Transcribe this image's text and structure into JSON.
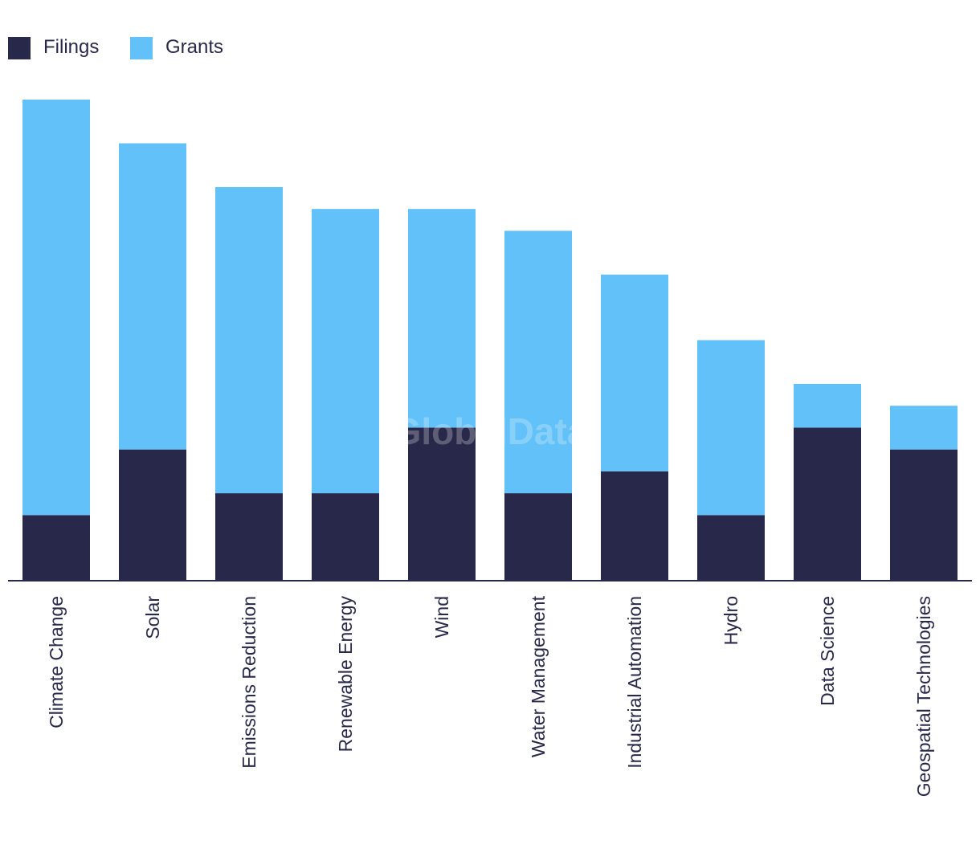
{
  "chart_data": {
    "type": "bar",
    "stacked": true,
    "title": "",
    "xlabel": "",
    "ylabel": "",
    "categories": [
      "Climate Change",
      "Solar",
      "Emissions Reduction",
      "Renewable Energy",
      "Wind",
      "Water Management",
      "Industrial Automation",
      "Hydro",
      "Data Science",
      "Geospatial Technologies"
    ],
    "series": [
      {
        "name": "Filings",
        "color": "#28284a",
        "values": [
          3,
          6,
          4,
          4,
          7,
          4,
          5,
          3,
          7,
          6
        ]
      },
      {
        "name": "Grants",
        "color": "#62c1f8",
        "values": [
          19,
          14,
          14,
          13,
          10,
          12,
          9,
          8,
          2,
          2
        ]
      }
    ],
    "ylim": [
      0,
      22
    ],
    "grid": false,
    "legend_position": "top-left",
    "axis_color": "#28284a"
  },
  "watermark": "GlobalData"
}
